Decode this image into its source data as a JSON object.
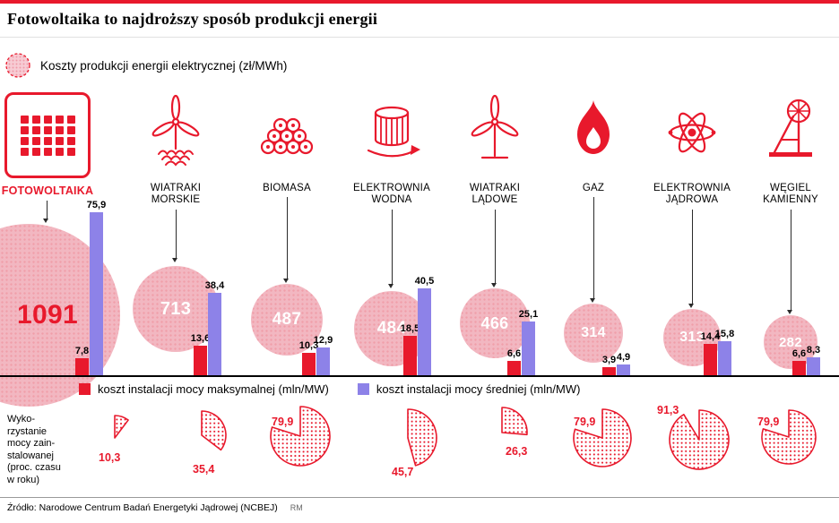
{
  "title": "Fotowoltaika to najdroższy sposób produkcji energii",
  "legend_top": "Koszty produkcji energii elektrycznej (zł/MWh)",
  "bar_legend": {
    "max": "koszt instalacji mocy maksymalnej (mln/MW)",
    "avg": "koszt instalacji mocy średniej (mln/MW)"
  },
  "utilization_note": "Wyko-\nrzystanie\nmocy zain-\nstalowanej\n(proc. czasu\nw roku)",
  "source": "Źródło: Narodowe Centrum Badań Energetyki Jądrowej (NCBEJ)",
  "credit": "RM",
  "colors": {
    "red": "#e8192c",
    "purple": "#8d82e8",
    "pink": "#f2b7c1"
  },
  "sources": [
    {
      "label": "FOTOWOLTAIKA",
      "label2": "",
      "cost": "1091",
      "cost_max": "7,8",
      "cost_avg": "75,9",
      "utilization": "10,3"
    },
    {
      "label": "WIATRAKI",
      "label2": "MORSKIE",
      "cost": "713",
      "cost_max": "13,6",
      "cost_avg": "38,4",
      "utilization": "35,4"
    },
    {
      "label": "BIOMASA",
      "label2": "",
      "cost": "487",
      "cost_max": "10,3",
      "cost_avg": "12,9",
      "utilization": "79,9"
    },
    {
      "label": "ELEKTROWNIA",
      "label2": "WODNA",
      "cost": "484",
      "cost_max": "18,5",
      "cost_avg": "40,5",
      "utilization": "45,7"
    },
    {
      "label": "WIATRAKI",
      "label2": "LĄDOWE",
      "cost": "466",
      "cost_max": "6,6",
      "cost_avg": "25,1",
      "utilization": "26,3"
    },
    {
      "label": "GAZ",
      "label2": "",
      "cost": "314",
      "cost_max": "3,9",
      "cost_avg": "4,9",
      "utilization": "79,9"
    },
    {
      "label": "ELEKTROWNIA",
      "label2": "JĄDROWA",
      "cost": "313",
      "cost_max": "14,4",
      "cost_avg": "15,8",
      "utilization": "91,3"
    },
    {
      "label": "WĘGIEL",
      "label2": "KAMIENNY",
      "cost": "282",
      "cost_max": "6,6",
      "cost_avg": "8,3",
      "utilization": "79,9"
    }
  ],
  "chart_data": {
    "type": "bar",
    "categories": [
      "Fotowoltaika",
      "Wiatraki morskie",
      "Biomasa",
      "Elektrownia wodna",
      "Wiatraki lądowe",
      "Gaz",
      "Elektrownia jądrowa",
      "Węgiel kamienny"
    ],
    "series": [
      {
        "name": "Koszty produkcji energii elektrycznej (zł/MWh)",
        "type": "bubble",
        "color": "#f2b7c1",
        "values": [
          1091,
          713,
          487,
          484,
          466,
          314,
          313,
          282
        ]
      },
      {
        "name": "koszt instalacji mocy maksymalnej (mln/MW)",
        "type": "bar",
        "color": "#e8192c",
        "values": [
          7.8,
          13.6,
          10.3,
          18.5,
          6.6,
          3.9,
          14.4,
          6.6
        ]
      },
      {
        "name": "koszt instalacji mocy średniej (mln/MW)",
        "type": "bar",
        "color": "#8d82e8",
        "values": [
          75.9,
          38.4,
          12.9,
          40.5,
          25.1,
          4.9,
          15.8,
          8.3
        ]
      },
      {
        "name": "Wykorzystanie mocy zainstalowanej (proc. czasu w roku)",
        "type": "pie",
        "color": "#e8192c",
        "values": [
          10.3,
          35.4,
          79.9,
          45.7,
          26.3,
          79.9,
          91.3,
          79.9
        ]
      }
    ],
    "title": "Fotowoltaika to najdroższy sposób produkcji energii",
    "xlabel": "",
    "ylabel": "",
    "legend_position": "below-bars",
    "grid": false
  }
}
